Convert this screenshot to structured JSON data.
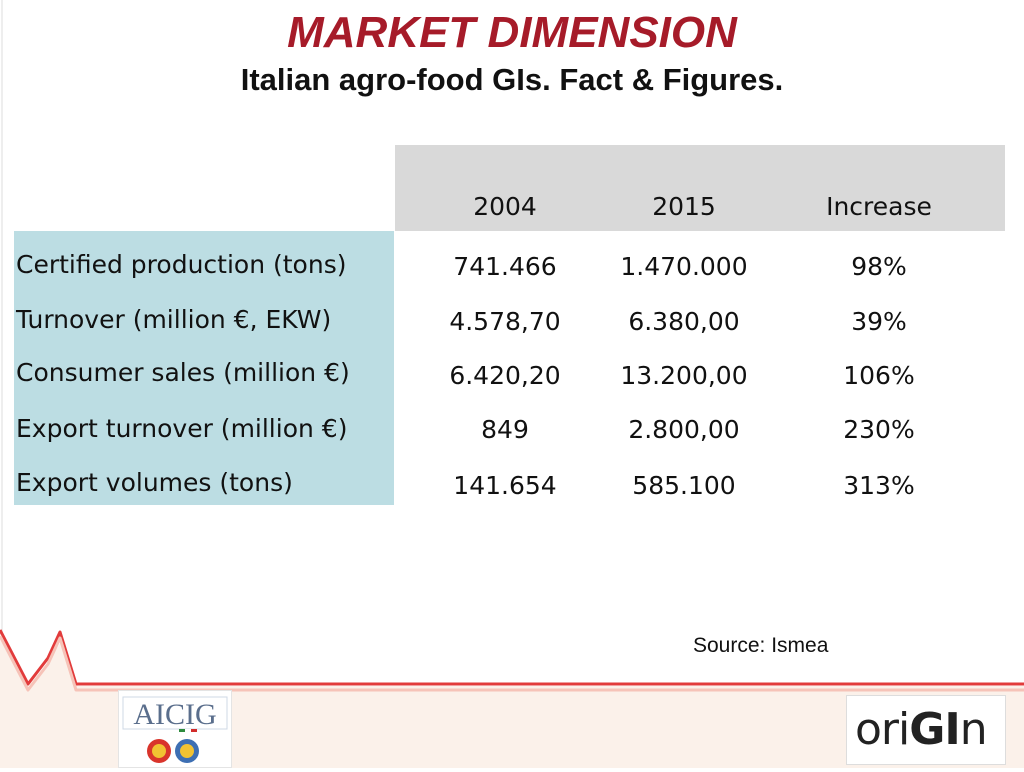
{
  "title": "MARKET DIMENSION",
  "subtitle": "Italian agro-food GIs. Fact & Figures.",
  "table": {
    "columns": [
      "2004",
      "2015",
      "Increase"
    ],
    "rows": [
      {
        "label": "Certified production (tons)",
        "v2004": "741.466",
        "v2015": "1.470.000",
        "increase": "98%"
      },
      {
        "label": "Turnover (million €, EKW)",
        "v2004": "4.578,70",
        "v2015": "6.380,00",
        "increase": "39%"
      },
      {
        "label": "Consumer sales (million €)",
        "v2004": "6.420,20",
        "v2015": "13.200,00",
        "increase": "106%"
      },
      {
        "label": "Export turnover (million €)",
        "v2004": "849",
        "v2015": "2.800,00",
        "increase": "230%"
      },
      {
        "label": "Export volumes (tons)",
        "v2004": "141.654",
        "v2015": "585.100",
        "increase": "313%"
      }
    ]
  },
  "source": "Source: Ismea",
  "logos": {
    "left": "AICIG",
    "right_prefix": "ori",
    "right_highlight": "GI",
    "right_suffix": "n"
  },
  "colors": {
    "title": "#a61b29",
    "header_band": "#d9d9d9",
    "label_band": "#bcdde3",
    "decorative_line": "#e23b3b"
  }
}
